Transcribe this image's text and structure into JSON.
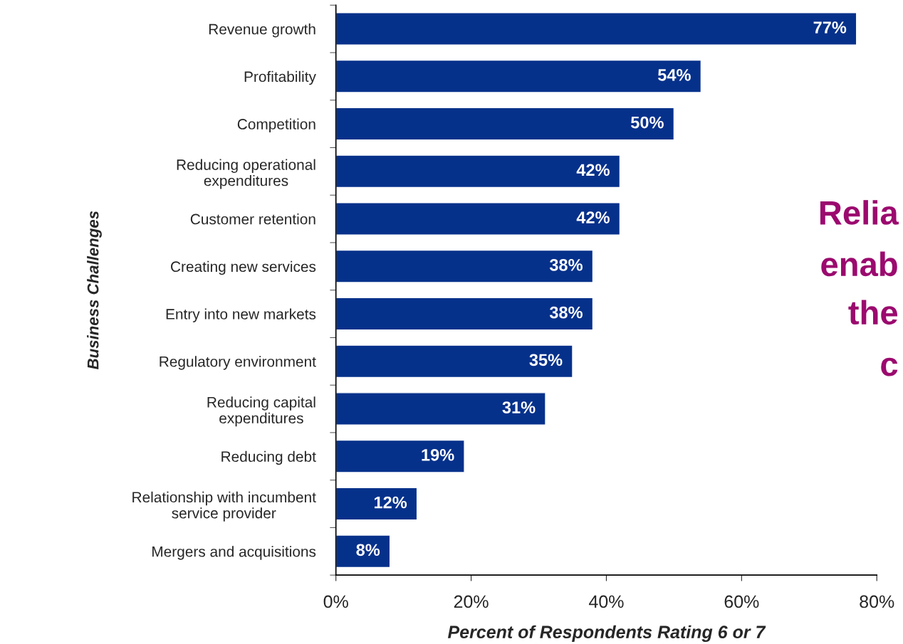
{
  "chart_data": {
    "type": "bar",
    "orientation": "horizontal",
    "xlabel": "Percent of Respondents Rating 6 or 7",
    "ylabel": "Business Challenges",
    "categories": [
      "Revenue growth",
      "Profitability",
      "Competition",
      "Reducing operational\nexpenditures",
      "Customer retention",
      "Creating new services",
      "Entry into new markets",
      "Regulatory environment",
      "Reducing capital\nexpenditures",
      "Reducing debt",
      "Relationship with incumbent\nservice provider",
      "Mergers and acquisitions"
    ],
    "values": [
      77,
      54,
      50,
      42,
      42,
      38,
      38,
      35,
      31,
      19,
      12,
      8
    ],
    "value_labels": [
      "77%",
      "54%",
      "50%",
      "42%",
      "42%",
      "38%",
      "38%",
      "35%",
      "31%",
      "19%",
      "12%",
      "8%"
    ],
    "color": "#06318b",
    "xlim": [
      0,
      80
    ],
    "xticks": [
      {
        "value": 0,
        "label": "0%"
      },
      {
        "value": 20,
        "label": "20%"
      },
      {
        "value": 40,
        "label": "40%"
      },
      {
        "value": 60,
        "label": "60%"
      },
      {
        "value": 80,
        "label": "80%"
      }
    ],
    "grid": false,
    "legend": false,
    "annotations": [
      "Relia",
      "enab",
      "the",
      "c"
    ]
  }
}
